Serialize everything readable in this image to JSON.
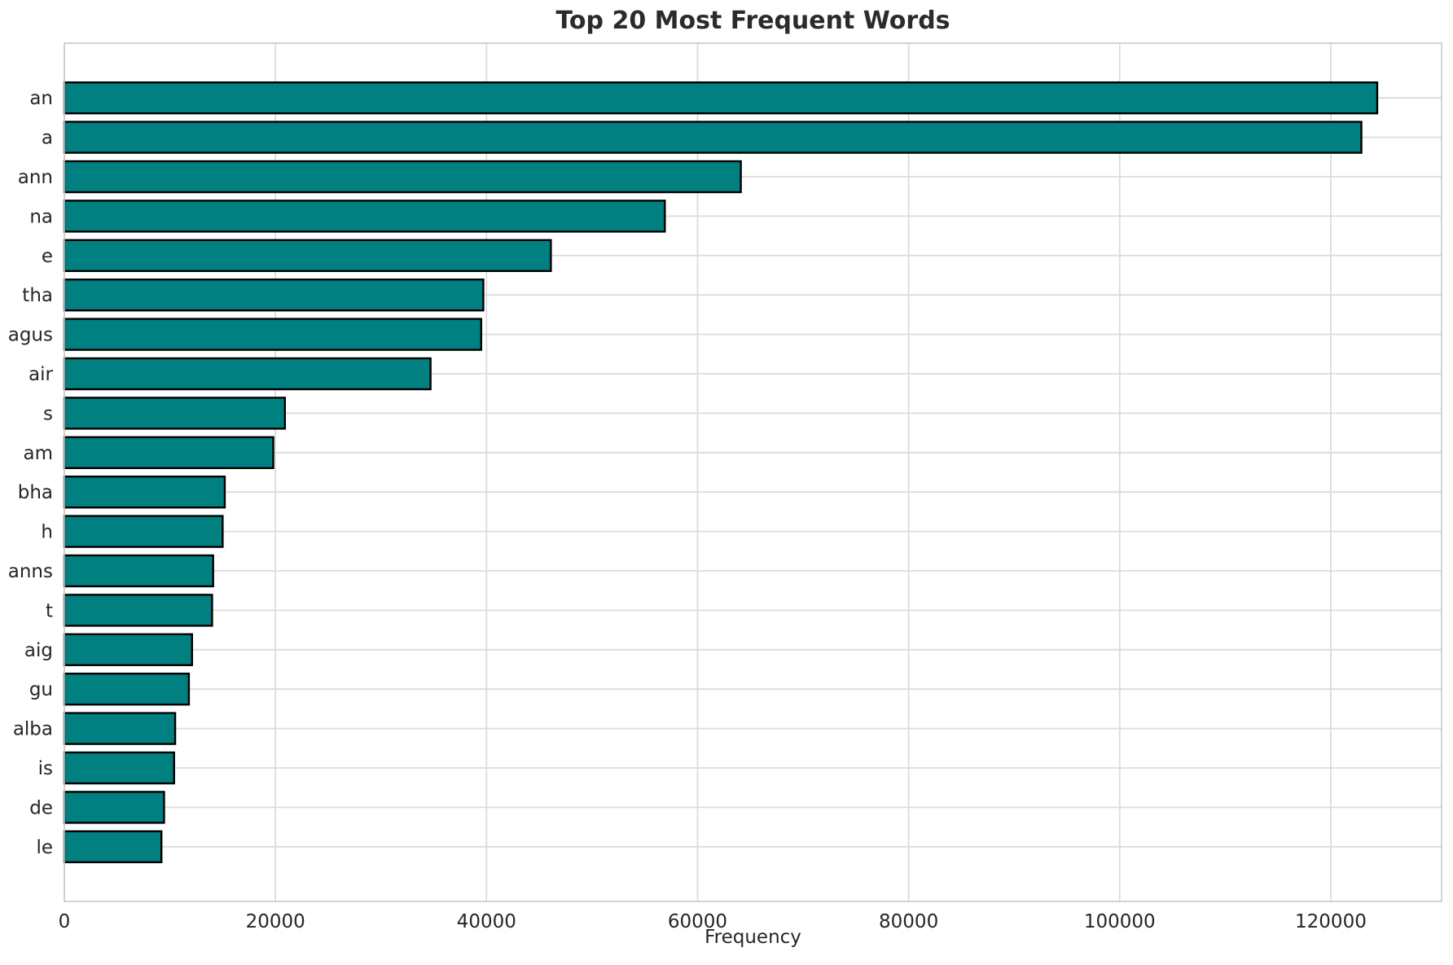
{
  "chart_data": {
    "type": "bar",
    "orientation": "horizontal",
    "title": "Top 20 Most Frequent Words",
    "xlabel": "Frequency",
    "ylabel": "",
    "categories": [
      "an",
      "a",
      "ann",
      "na",
      "e",
      "tha",
      "agus",
      "air",
      "s",
      "am",
      "bha",
      "h",
      "anns",
      "t",
      "aig",
      "gu",
      "alba",
      "is",
      "de",
      "le"
    ],
    "values": [
      124400,
      122900,
      64100,
      56900,
      46100,
      39700,
      39500,
      34700,
      20900,
      19800,
      15200,
      15000,
      14100,
      14000,
      12100,
      11800,
      10500,
      10400,
      9450,
      9200
    ],
    "xlim": [
      0,
      130500
    ],
    "xticks": [
      0,
      20000,
      40000,
      60000,
      80000,
      100000,
      120000
    ],
    "xtick_labels": [
      "0",
      "20000",
      "40000",
      "60000",
      "80000",
      "100000",
      "120000"
    ],
    "grid": "both",
    "legend_position": "none",
    "colors": {
      "bar_fill": "#008080",
      "bar_edge": "#000000",
      "grid": "#dcdcdc",
      "spine": "#c8c8c8",
      "tick_text": "#262626",
      "title_text": "#2b2b2b"
    }
  }
}
